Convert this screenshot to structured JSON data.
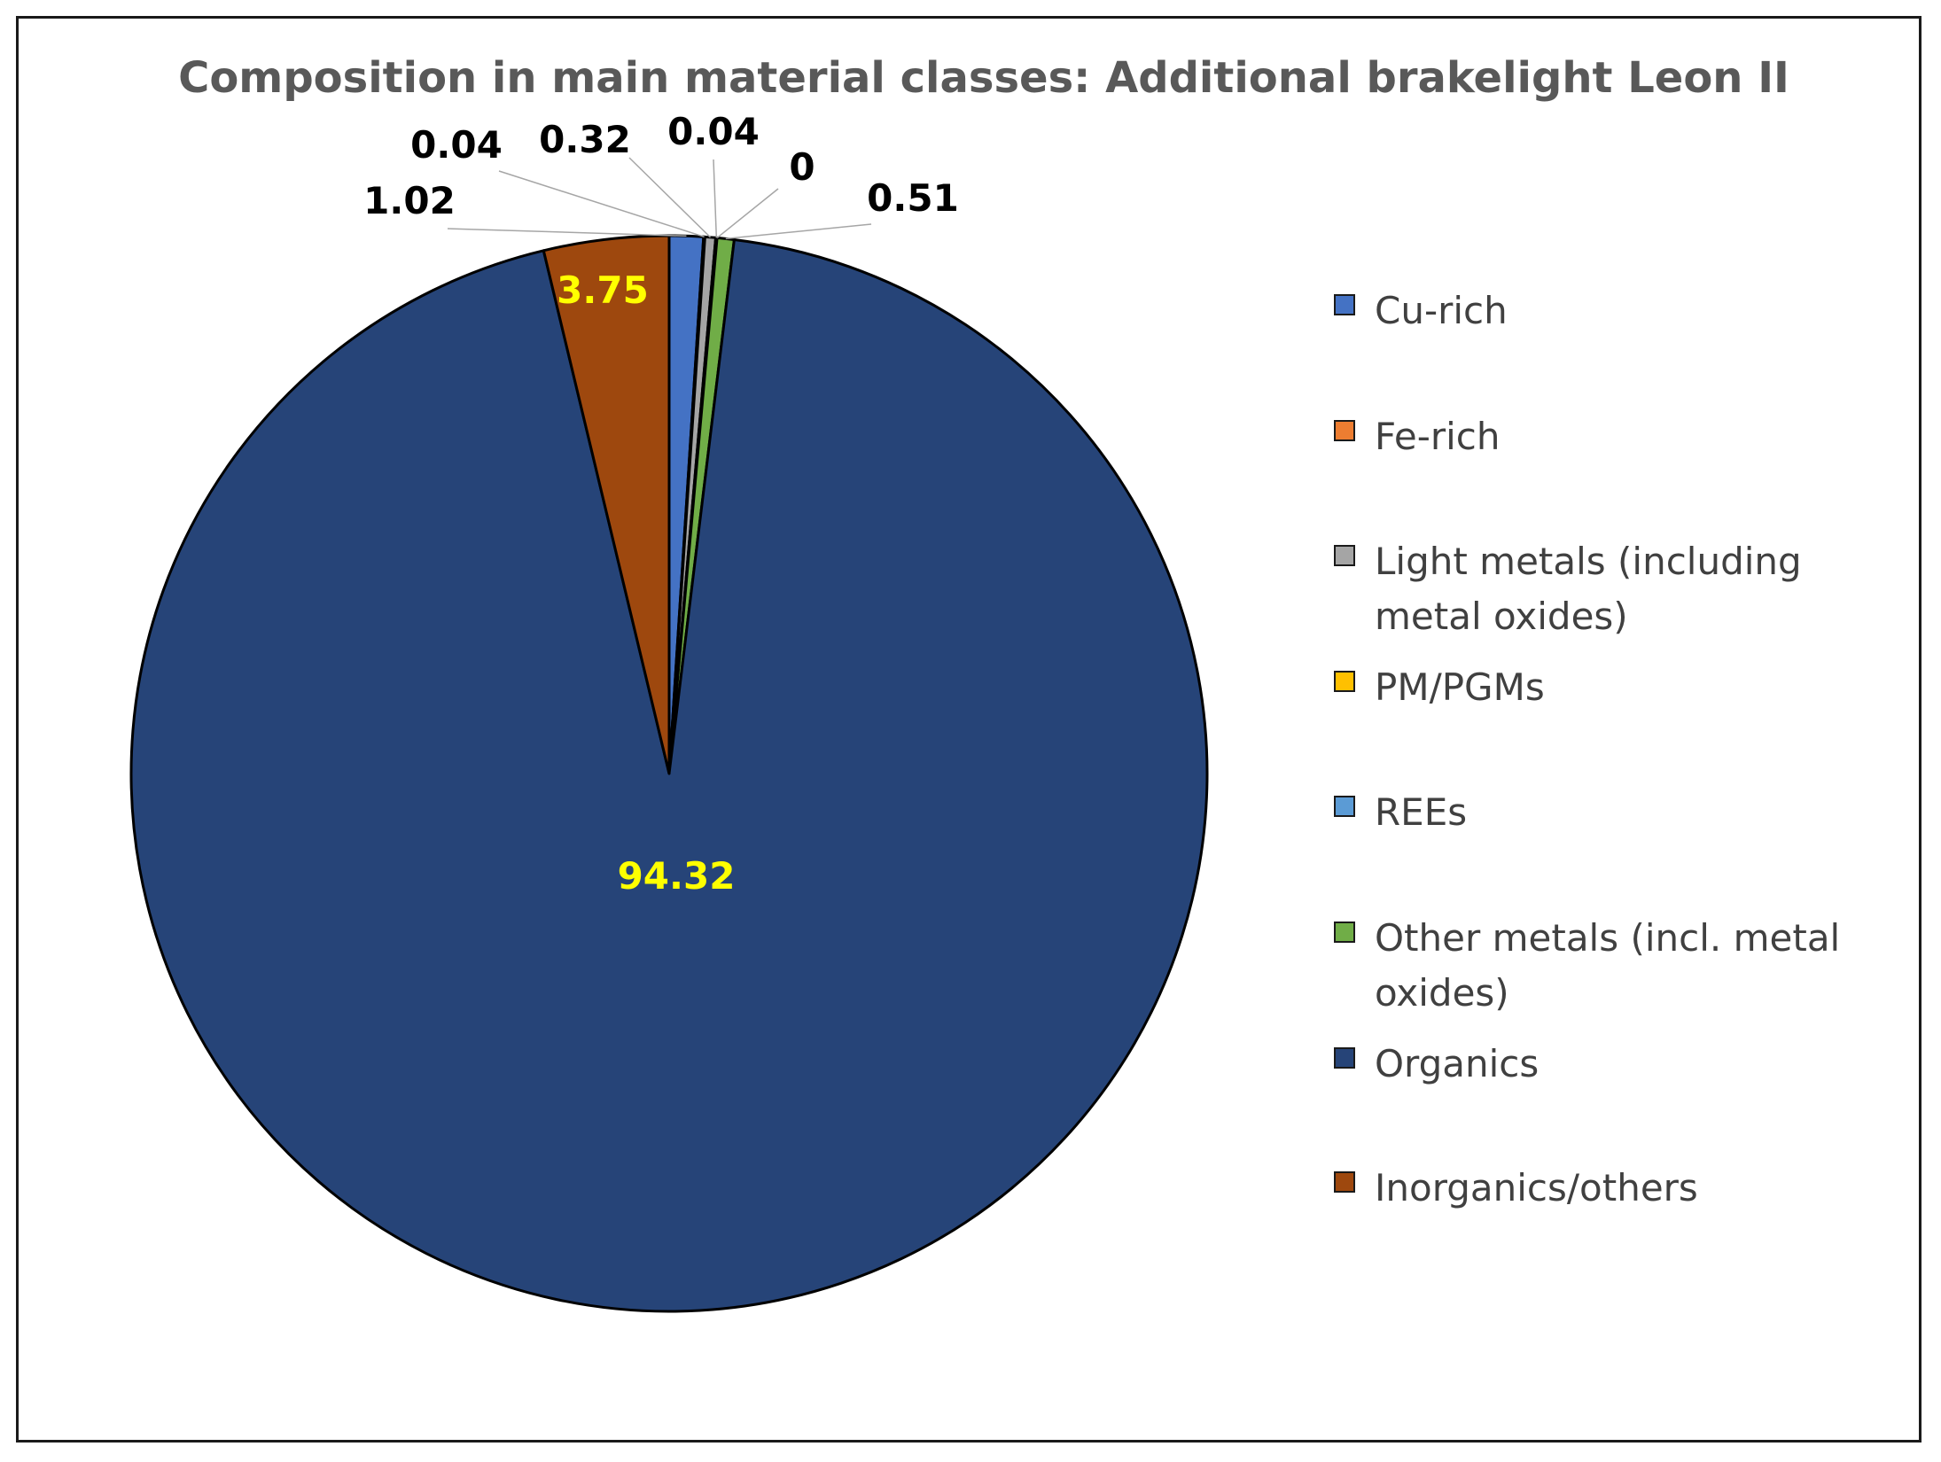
{
  "chart_data": {
    "type": "pie",
    "title": "Composition in main material classes: Additional brakelight Leon II",
    "categories": [
      "Cu-rich",
      "Fe-rich",
      "Light metals (including metal oxides)",
      "PM/PGMs",
      "REEs",
      "Other metals (incl. metal oxides)",
      "Organics",
      "Inorganics/others"
    ],
    "values": [
      1.02,
      0.04,
      0.32,
      0.04,
      0,
      0.51,
      94.32,
      3.75
    ],
    "data_labels": [
      "1.02",
      "0.04",
      "0.32",
      "0.04",
      "0",
      "0.51",
      "94.32",
      "3.75"
    ],
    "colors": [
      "#4472C4",
      "#ED7D31",
      "#A5A5A5",
      "#FFC000",
      "#5B9BD5",
      "#70AD47",
      "#264478",
      "#9E480E"
    ],
    "label_colors": [
      "#000000",
      "#000000",
      "#000000",
      "#000000",
      "#000000",
      "#000000",
      "#FFFF00",
      "#FFFF00"
    ],
    "legend_position": "right",
    "start_angle_deg": 0,
    "direction": "clockwise"
  }
}
